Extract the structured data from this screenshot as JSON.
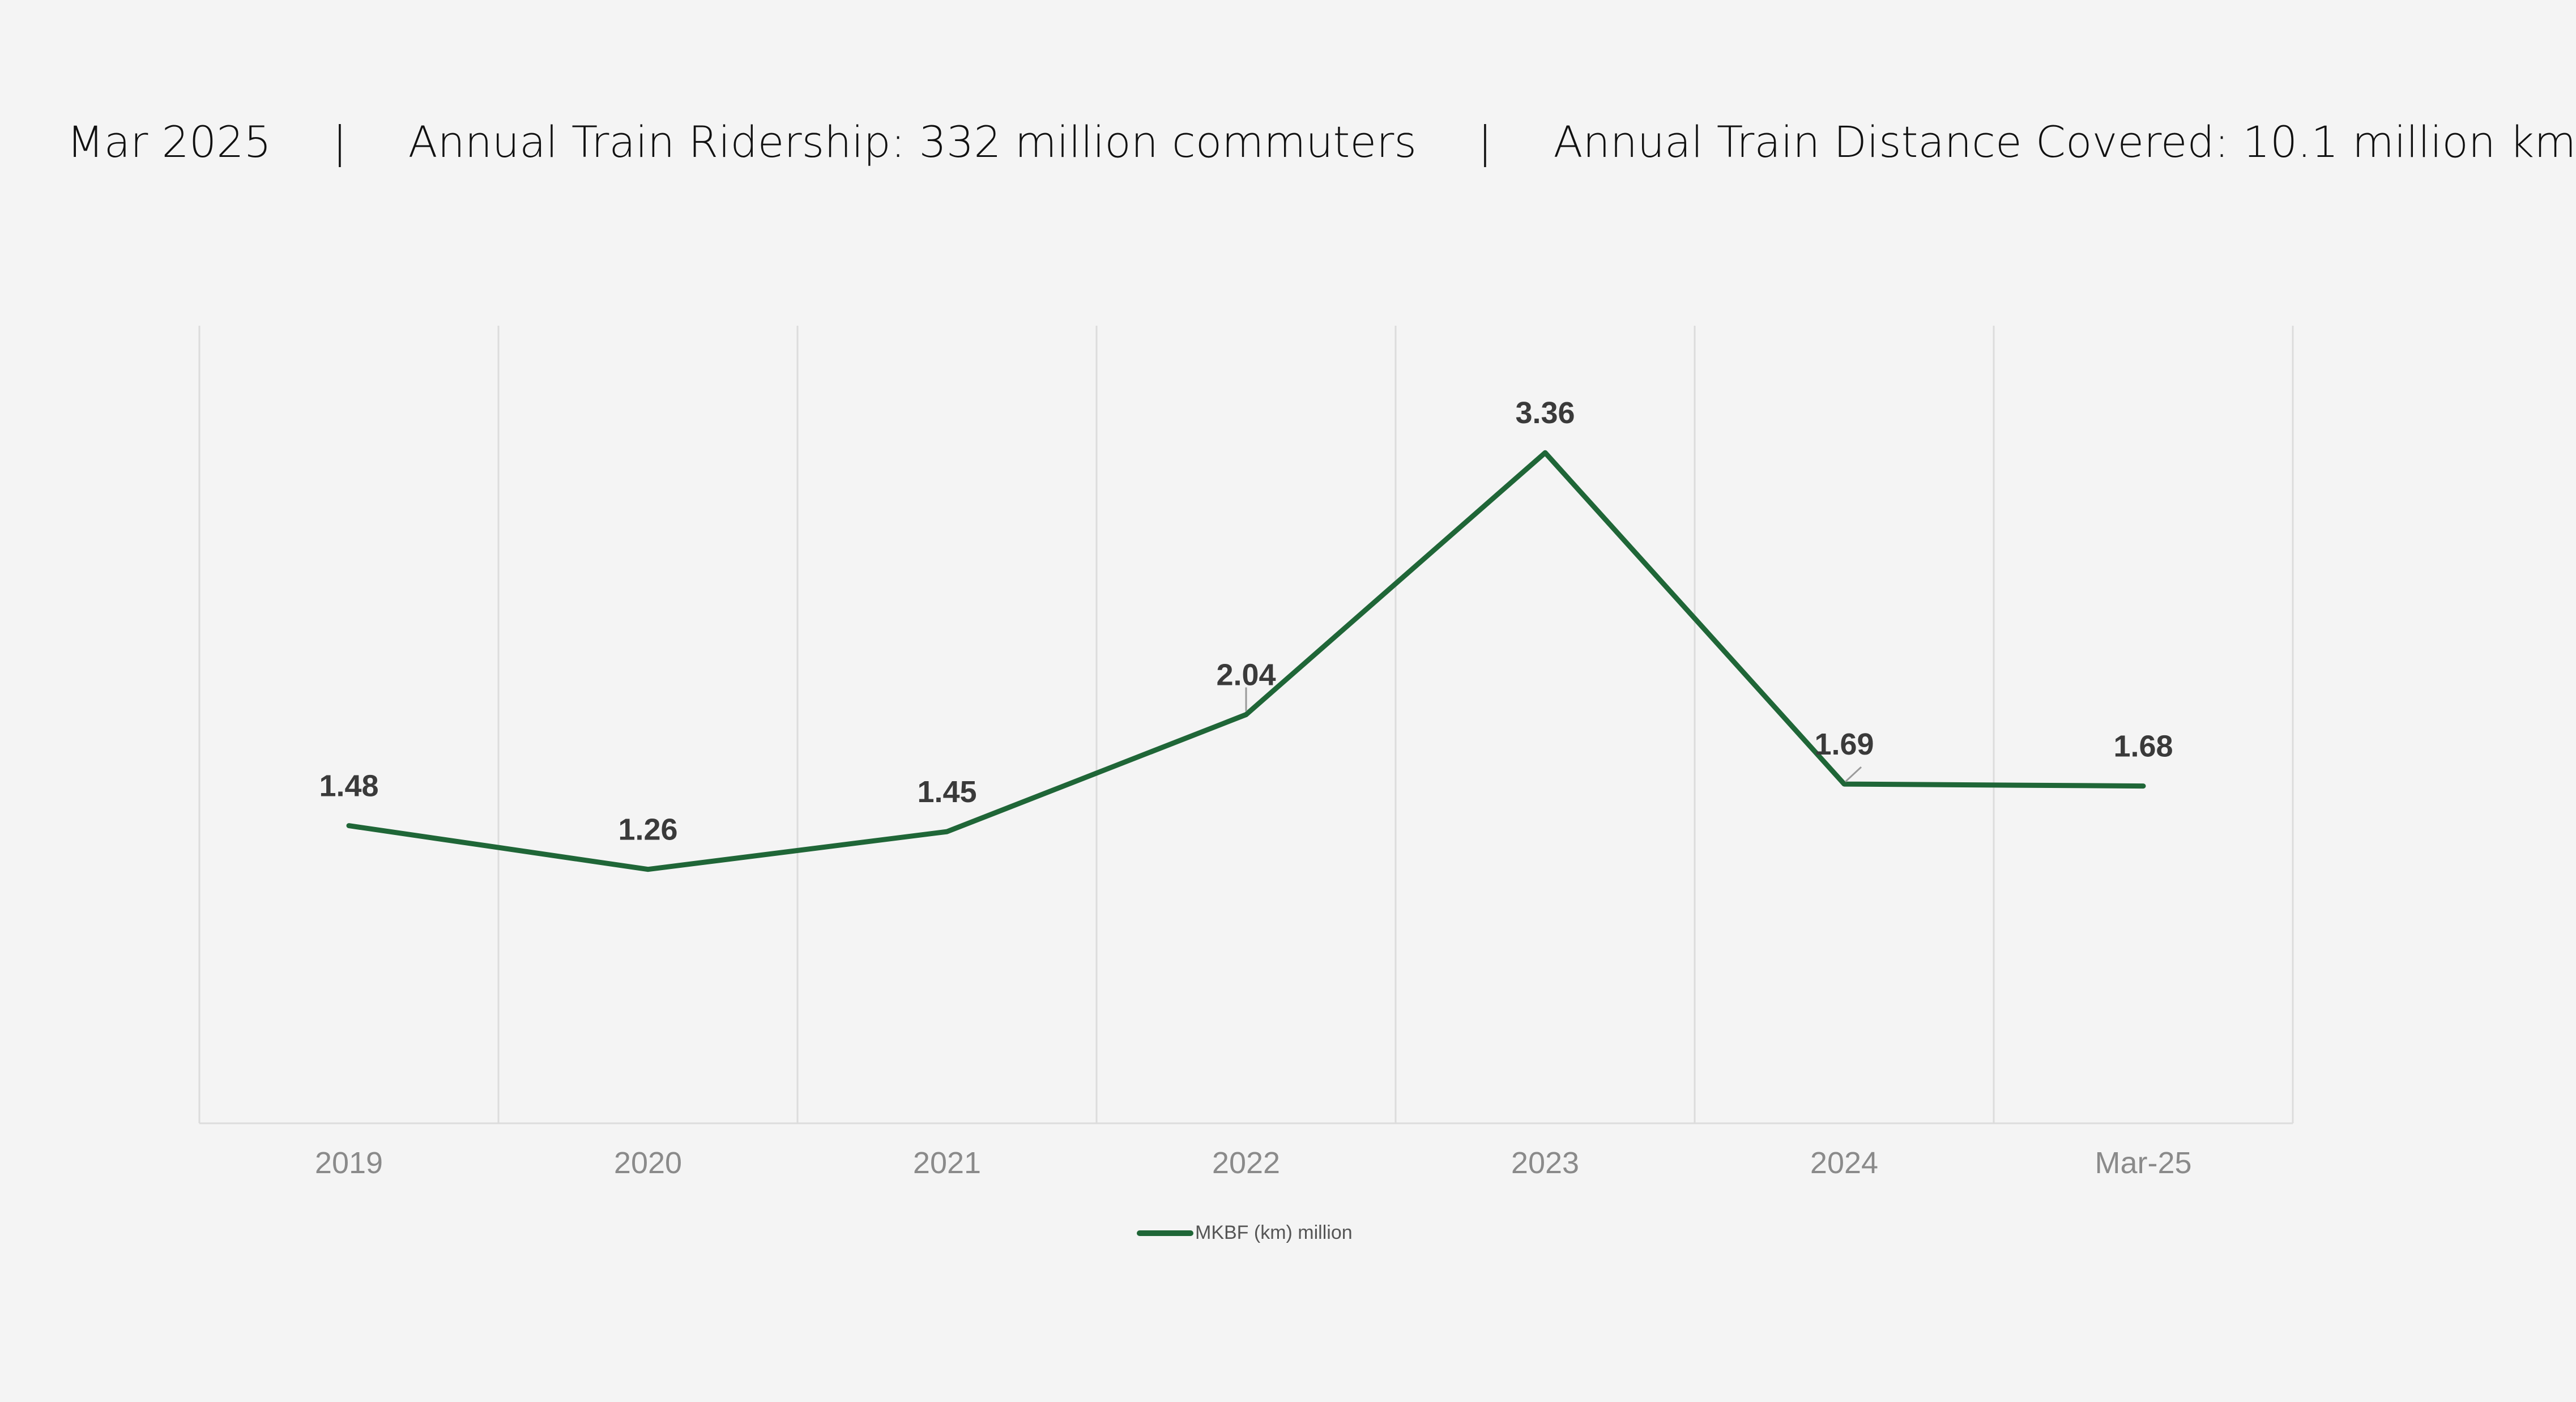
{
  "header": {
    "period": "Mar 2025",
    "separator": "|",
    "ridership": "Annual Train Ridership: 332 million commuters",
    "distance": "Annual Train Distance Covered: 10.1 million km"
  },
  "colors": {
    "series": "#1f6637",
    "grid": "#dcdcdc",
    "axis_text": "#8a8a8a",
    "label_text": "#3a3a3a",
    "background": "#f4f4f4"
  },
  "chart_data": {
    "type": "line",
    "title": "",
    "xlabel": "",
    "ylabel": "",
    "categories": [
      "2019",
      "2020",
      "2021",
      "2022",
      "2023",
      "2024",
      "Mar-25"
    ],
    "series": [
      {
        "name": "MKBF (km) million",
        "values": [
          1.48,
          1.26,
          1.45,
          2.04,
          3.36,
          1.69,
          1.68
        ]
      }
    ],
    "data_labels": [
      "1.48",
      "1.26",
      "1.45",
      "2.04",
      "3.36",
      "1.69",
      "1.68"
    ],
    "ylim": [
      -0.02,
      4.0
    ],
    "grid": "vertical",
    "legend": "bottom-center"
  }
}
